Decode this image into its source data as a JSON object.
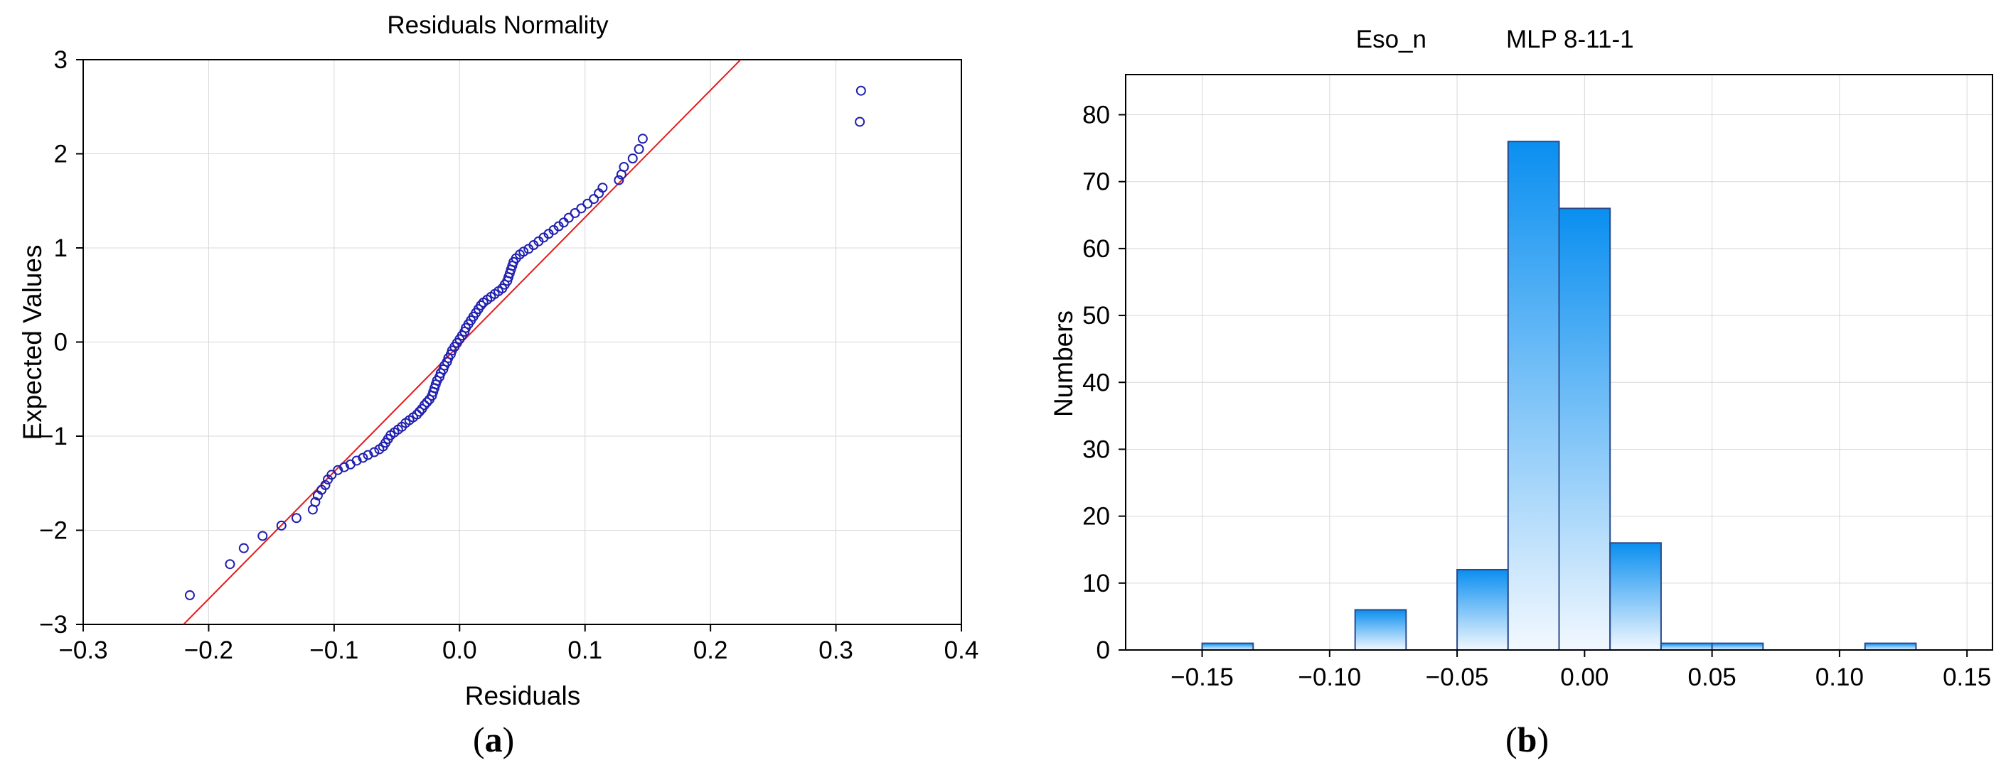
{
  "captions": {
    "a_open": "(",
    "a_letter": "a",
    "a_close": ")",
    "b_open": "(",
    "b_letter": "b",
    "b_close": ")"
  },
  "colors": {
    "line": "#e31a1c",
    "marker": "#1f1fb0",
    "bar_top": "#0a8ff0",
    "bar_bottom": "#f2f8ff",
    "bar_edge": "#2a4a8a",
    "grid": "#d8d8d8"
  },
  "chart_data": [
    {
      "type": "scatter",
      "title": "Residuals Normality",
      "xlabel": "Residuals",
      "ylabel": "Expected Values",
      "xlim": [
        -0.3,
        0.4
      ],
      "ylim": [
        -3,
        3
      ],
      "xticks": [
        "-0.3",
        "-0.2",
        "-0.1",
        "0.0",
        "0.1",
        "0.2",
        "0.3",
        "0.4"
      ],
      "yticks": [
        "-3",
        "-2",
        "-1",
        "0",
        "1",
        "2",
        "3"
      ],
      "grid": true,
      "reference_line": {
        "x": [
          -0.22,
          0.224
        ],
        "y": [
          -3.0,
          3.0
        ]
      },
      "points": [
        [
          -0.215,
          -2.69
        ],
        [
          -0.183,
          -2.36
        ],
        [
          -0.172,
          -2.19
        ],
        [
          -0.157,
          -2.06
        ],
        [
          -0.142,
          -1.95
        ],
        [
          -0.13,
          -1.87
        ],
        [
          -0.117,
          -1.78
        ],
        [
          -0.115,
          -1.7
        ],
        [
          -0.113,
          -1.63
        ],
        [
          -0.11,
          -1.57
        ],
        [
          -0.107,
          -1.52
        ],
        [
          -0.105,
          -1.46
        ],
        [
          -0.102,
          -1.41
        ],
        [
          -0.097,
          -1.36
        ],
        [
          -0.092,
          -1.33
        ],
        [
          -0.087,
          -1.3
        ],
        [
          -0.082,
          -1.26
        ],
        [
          -0.077,
          -1.23
        ],
        [
          -0.073,
          -1.2
        ],
        [
          -0.068,
          -1.17
        ],
        [
          -0.064,
          -1.14
        ],
        [
          -0.061,
          -1.11
        ],
        [
          -0.059,
          -1.07
        ],
        [
          -0.057,
          -1.03
        ],
        [
          -0.055,
          -0.99
        ],
        [
          -0.052,
          -0.96
        ],
        [
          -0.049,
          -0.93
        ],
        [
          -0.046,
          -0.9
        ],
        [
          -0.043,
          -0.86
        ],
        [
          -0.04,
          -0.83
        ],
        [
          -0.037,
          -0.8
        ],
        [
          -0.034,
          -0.77
        ],
        [
          -0.032,
          -0.74
        ],
        [
          -0.03,
          -0.71
        ],
        [
          -0.028,
          -0.67
        ],
        [
          -0.026,
          -0.64
        ],
        [
          -0.024,
          -0.61
        ],
        [
          -0.022,
          -0.57
        ],
        [
          -0.021,
          -0.53
        ],
        [
          -0.02,
          -0.49
        ],
        [
          -0.019,
          -0.45
        ],
        [
          -0.018,
          -0.41
        ],
        [
          -0.016,
          -0.37
        ],
        [
          -0.015,
          -0.33
        ],
        [
          -0.013,
          -0.29
        ],
        [
          -0.012,
          -0.25
        ],
        [
          -0.01,
          -0.21
        ],
        [
          -0.009,
          -0.17
        ],
        [
          -0.007,
          -0.13
        ],
        [
          -0.006,
          -0.09
        ],
        [
          -0.004,
          -0.05
        ],
        [
          -0.002,
          -0.01
        ],
        [
          0.0,
          0.03
        ],
        [
          0.002,
          0.07
        ],
        [
          0.004,
          0.11
        ],
        [
          0.005,
          0.15
        ],
        [
          0.007,
          0.19
        ],
        [
          0.009,
          0.23
        ],
        [
          0.011,
          0.27
        ],
        [
          0.013,
          0.31
        ],
        [
          0.015,
          0.35
        ],
        [
          0.017,
          0.39
        ],
        [
          0.019,
          0.42
        ],
        [
          0.022,
          0.45
        ],
        [
          0.025,
          0.48
        ],
        [
          0.028,
          0.51
        ],
        [
          0.031,
          0.54
        ],
        [
          0.034,
          0.57
        ],
        [
          0.036,
          0.61
        ],
        [
          0.038,
          0.65
        ],
        [
          0.039,
          0.69
        ],
        [
          0.04,
          0.73
        ],
        [
          0.041,
          0.77
        ],
        [
          0.042,
          0.81
        ],
        [
          0.043,
          0.85
        ],
        [
          0.045,
          0.89
        ],
        [
          0.048,
          0.93
        ],
        [
          0.051,
          0.96
        ],
        [
          0.055,
          0.99
        ],
        [
          0.059,
          1.03
        ],
        [
          0.063,
          1.07
        ],
        [
          0.067,
          1.11
        ],
        [
          0.071,
          1.15
        ],
        [
          0.075,
          1.19
        ],
        [
          0.079,
          1.23
        ],
        [
          0.083,
          1.27
        ],
        [
          0.087,
          1.32
        ],
        [
          0.092,
          1.37
        ],
        [
          0.097,
          1.42
        ],
        [
          0.102,
          1.47
        ],
        [
          0.107,
          1.52
        ],
        [
          0.111,
          1.58
        ],
        [
          0.114,
          1.64
        ],
        [
          0.127,
          1.72
        ],
        [
          0.129,
          1.78
        ],
        [
          0.131,
          1.86
        ],
        [
          0.138,
          1.95
        ],
        [
          0.143,
          2.05
        ],
        [
          0.146,
          2.16
        ],
        [
          0.319,
          2.34
        ],
        [
          0.32,
          2.67
        ]
      ]
    },
    {
      "type": "bar",
      "title_left": "Eso_n",
      "title_right": "MLP 8-11-1",
      "xlabel": "",
      "ylabel": "Numbers",
      "xlim": [
        -0.18,
        0.16
      ],
      "ylim": [
        0,
        86
      ],
      "xticks": [
        "-0.15",
        "-0.10",
        "-0.05",
        "0.00",
        "0.05",
        "0.10",
        "0.15"
      ],
      "yticks": [
        "0",
        "10",
        "20",
        "30",
        "40",
        "50",
        "60",
        "70",
        "80"
      ],
      "grid": true,
      "bin_width": 0.02,
      "bins": [
        {
          "center": -0.14,
          "value": 1
        },
        {
          "center": -0.08,
          "value": 6
        },
        {
          "center": -0.04,
          "value": 12
        },
        {
          "center": -0.02,
          "value": 76
        },
        {
          "center": 0.0,
          "value": 66
        },
        {
          "center": 0.02,
          "value": 16
        },
        {
          "center": 0.04,
          "value": 1
        },
        {
          "center": 0.06,
          "value": 1
        },
        {
          "center": 0.12,
          "value": 1
        }
      ]
    }
  ]
}
